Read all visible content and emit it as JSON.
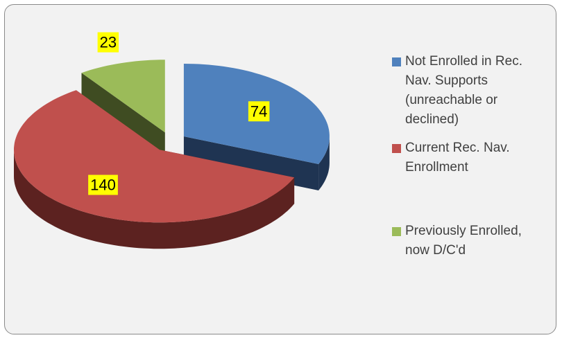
{
  "chart_data": {
    "type": "pie3d",
    "categories": [
      "Not Enrolled in Rec. Nav. Supports (unreachable or declined)",
      "Current Rec. Nav. Enrollment",
      "Previously Enrolled, now D/C'd"
    ],
    "values": [
      74,
      140,
      23
    ],
    "colors": [
      "#4f81bd",
      "#c0504d",
      "#9bbb59"
    ],
    "side_colors": [
      "#1f3452",
      "#5c2220",
      "#3f4c22"
    ],
    "legend": "right"
  }
}
